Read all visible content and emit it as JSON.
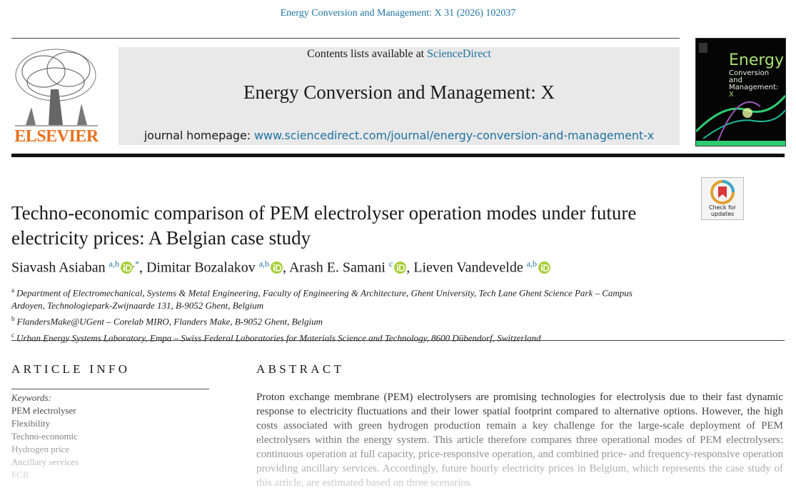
{
  "journal_ref": "Energy Conversion and Management: X 31 (2026) 102037",
  "header": {
    "contents_prefix": "Contents lists available at",
    "contents_link": "ScienceDirect",
    "journal_title": "Energy Conversion and Management: X",
    "homepage_label": "journal homepage:",
    "homepage_url": "www.sciencedirect.com/journal/energy-conversion-and-management-x"
  },
  "publisher": "ELSEVIER",
  "cover": {
    "title": "Energy",
    "subtitle": [
      "Conversion",
      "and Management:"
    ],
    "badge": "X"
  },
  "check_updates": [
    "Check for",
    "updates"
  ],
  "title": "Techno-economic comparison of PEM electrolyser operation modes under future electricity prices: A Belgian case study",
  "authors": [
    {
      "name": "Siavash Asiaban",
      "affil": "a,b",
      "mark": ",*",
      "separator": ","
    },
    {
      "name": "Dimitar Bozalakov",
      "affil": "a,b",
      "separator": ","
    },
    {
      "name": "Arash E. Samani",
      "affil": "c",
      "separator": ","
    },
    {
      "name": "Lieven Vandevelde",
      "affil": "a,b"
    }
  ],
  "affiliations": [
    {
      "label": "a",
      "text": "Department of Electromechanical, Systems & Metal Engineering, Faculty of Engineering & Architecture, Ghent University, Tech Lane Ghent Science Park – Campus Ardoyen, Technologiepark-Zwijnaarde 131, B-9052 Ghent, Belgium"
    },
    {
      "label": "b",
      "text": "FlandersMake@UGent – Corelab MIRO, Flanders Make, B-9052 Ghent, Belgium"
    },
    {
      "label": "c",
      "text": "Urban Energy Systems Laboratory, Empa – Swiss Federal Laboratories for Materials Science and Technology, 8600 Dübendorf, Switzerland"
    }
  ],
  "article_info": {
    "heading": "ARTICLE INFO",
    "keywords_label": "Keywords:",
    "keywords": [
      "PEM electrolyser",
      "Flexibility",
      "Techno-economic",
      "Hydrogen price",
      "Ancillary services",
      "FCR"
    ]
  },
  "abstract": {
    "heading": "ABSTRACT",
    "text": "Proton exchange membrane (PEM) electrolysers are promising technologies for electrolysis due to their fast dynamic response to electricity fluctuations and their lower spatial footprint compared to alternative options. However, the high costs associated with green hydrogen production remain a key challenge for the large-scale deployment of PEM electrolysers within the energy system. This article therefore compares three operational modes of PEM electrolysers: continuous operation at full capacity, price-responsive operation, and combined price- and frequency-responsive operation providing ancillary services. Accordingly, future hourly electricity prices in Belgium, which represents the case study of this article, are estimated based on three scenarios"
  }
}
